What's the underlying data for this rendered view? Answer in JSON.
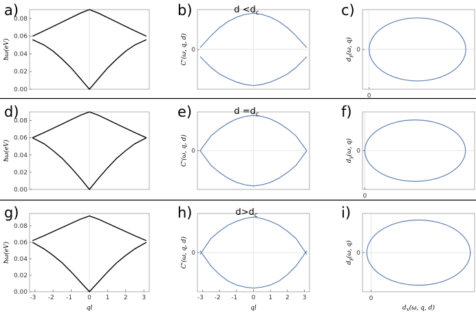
{
  "chart_data": [
    {
      "id": "a",
      "type": "line",
      "panel_label": "a)",
      "title": "",
      "xlabel": "",
      "ylabel": "ħω(eV)",
      "ylim": [
        0,
        0.09
      ],
      "yticks": [
        "0.00",
        "0.02",
        "0.04",
        "0.06",
        "0.08"
      ],
      "xticks": [],
      "line_color": "#000000",
      "series": [
        {
          "x": [
            -3.14,
            -2.5,
            -2,
            -1.5,
            -1,
            -0.5,
            0,
            0.5,
            1,
            1.5,
            2,
            2.5,
            3.14
          ],
          "y": [
            0.06,
            0.066,
            0.071,
            0.076,
            0.081,
            0.086,
            0.09,
            0.086,
            0.081,
            0.076,
            0.071,
            0.066,
            0.06
          ]
        },
        {
          "x": [
            -3.14,
            -2.5,
            -2,
            -1.5,
            -1,
            -0.5,
            0,
            0.5,
            1,
            1.5,
            2,
            2.5,
            3.14
          ],
          "y": [
            0.056,
            0.05,
            0.043,
            0.034,
            0.024,
            0.012,
            0.0,
            0.012,
            0.024,
            0.034,
            0.043,
            0.05,
            0.056
          ]
        }
      ]
    },
    {
      "id": "b",
      "type": "line",
      "panel_label": "b)",
      "title": "d <d",
      "title_sub": "c",
      "xlabel": "",
      "ylabel": "C'(ω, q, d)",
      "ylim": [
        -1.1,
        1.1
      ],
      "yticks": [
        "0"
      ],
      "xticks": [],
      "line_color": "#5b7fb5",
      "series": [
        {
          "x": [
            -3.14,
            -2.5,
            -2,
            -1.5,
            -1,
            -0.5,
            0,
            0.5,
            1,
            1.5,
            2,
            2.5,
            3.14
          ],
          "y": [
            0.05,
            0.38,
            0.6,
            0.77,
            0.89,
            0.97,
            1.0,
            0.97,
            0.89,
            0.77,
            0.6,
            0.38,
            0.05
          ]
        },
        {
          "x": [
            -3.14,
            -2.5,
            -2,
            -1.5,
            -1,
            -0.5,
            0,
            0.5,
            1,
            1.5,
            2,
            2.5,
            3.14
          ],
          "y": [
            -0.2,
            -0.5,
            -0.68,
            -0.8,
            -0.9,
            -0.97,
            -1.0,
            -0.97,
            -0.9,
            -0.8,
            -0.68,
            -0.5,
            -0.2
          ]
        }
      ]
    },
    {
      "id": "c",
      "type": "line",
      "panel_label": "c)",
      "title": "",
      "xlabel": "",
      "ylabel": "d_y(ω, q)",
      "xlim": [
        -0.15,
        2.4
      ],
      "ylim": [
        -1.2,
        1.2
      ],
      "yticks": [
        "0"
      ],
      "xticks": [
        "0"
      ],
      "line_color": "#5b7fb5",
      "ellipse": {
        "cx": 1.1,
        "cy": 0,
        "rx": 1.1,
        "ry": 0.95
      }
    },
    {
      "id": "d",
      "type": "line",
      "panel_label": "d)",
      "title": "",
      "xlabel": "",
      "ylabel": "ħω(eV)",
      "ylim": [
        0,
        0.09
      ],
      "yticks": [
        "0.00",
        "0.02",
        "0.04",
        "0.06",
        "0.08"
      ],
      "xticks": [],
      "line_color": "#000000",
      "series": [
        {
          "x": [
            -3.14,
            -2.5,
            -2,
            -1.5,
            -1,
            -0.5,
            0,
            0.5,
            1,
            1.5,
            2,
            2.5,
            3.14
          ],
          "y": [
            0.06,
            0.066,
            0.071,
            0.076,
            0.081,
            0.086,
            0.09,
            0.086,
            0.081,
            0.076,
            0.071,
            0.066,
            0.06
          ]
        },
        {
          "x": [
            -3.14,
            -2.5,
            -2,
            -1.5,
            -1,
            -0.5,
            0,
            0.5,
            1,
            1.5,
            2,
            2.5,
            3.14
          ],
          "y": [
            0.06,
            0.053,
            0.045,
            0.036,
            0.025,
            0.013,
            0.0,
            0.013,
            0.025,
            0.036,
            0.045,
            0.053,
            0.06
          ]
        }
      ]
    },
    {
      "id": "e",
      "type": "line",
      "panel_label": "e)",
      "title": "d =d",
      "title_sub": "c",
      "xlabel": "",
      "ylabel": "C'(ω, q, d)",
      "ylim": [
        -1.1,
        1.1
      ],
      "yticks": [
        "0"
      ],
      "xticks": [],
      "line_color": "#5b7fb5",
      "series": [
        {
          "x": [
            -3.14,
            -2.5,
            -2,
            -1.5,
            -1,
            -0.5,
            0,
            0.5,
            1,
            1.5,
            2,
            2.5,
            3.14
          ],
          "y": [
            0.0,
            0.42,
            0.62,
            0.78,
            0.9,
            0.97,
            1.0,
            0.97,
            0.9,
            0.78,
            0.62,
            0.42,
            0.0
          ]
        },
        {
          "x": [
            -3.14,
            -2.5,
            -2,
            -1.5,
            -1,
            -0.5,
            0,
            0.5,
            1,
            1.5,
            2,
            2.5,
            3.14
          ],
          "y": [
            0.0,
            -0.42,
            -0.62,
            -0.78,
            -0.9,
            -0.97,
            -1.0,
            -0.97,
            -0.9,
            -0.78,
            -0.62,
            -0.42,
            0.0
          ]
        }
      ]
    },
    {
      "id": "f",
      "type": "line",
      "panel_label": "f)",
      "title": "",
      "xlabel": "",
      "ylabel": "d_y(ω, q)",
      "xlim": [
        -0.05,
        2.4
      ],
      "ylim": [
        -1.2,
        1.2
      ],
      "yticks": [
        "0"
      ],
      "xticks": [
        "0"
      ],
      "line_color": "#5b7fb5",
      "ellipse": {
        "cx": 1.1,
        "cy": 0,
        "rx": 1.1,
        "ry": 0.95
      }
    },
    {
      "id": "g",
      "type": "line",
      "panel_label": "g)",
      "title": "",
      "xlabel": "ql",
      "ylabel": "ħω(eV)",
      "ylim": [
        0,
        0.095
      ],
      "yticks": [
        "0.00",
        "0.02",
        "0.04",
        "0.06",
        "0.08"
      ],
      "xticks": [
        "-3",
        "-2",
        "-1",
        "0",
        "1",
        "2",
        "3"
      ],
      "line_color": "#000000",
      "series": [
        {
          "x": [
            -3.14,
            -2.5,
            -2,
            -1.5,
            -1,
            -0.5,
            0,
            0.5,
            1,
            1.5,
            2,
            2.5,
            3.14
          ],
          "y": [
            0.062,
            0.068,
            0.073,
            0.078,
            0.083,
            0.088,
            0.092,
            0.088,
            0.083,
            0.078,
            0.073,
            0.068,
            0.062
          ]
        },
        {
          "x": [
            -3.14,
            -2.5,
            -2,
            -1.5,
            -1,
            -0.5,
            0,
            0.5,
            1,
            1.5,
            2,
            2.5,
            3.14
          ],
          "y": [
            0.06,
            0.052,
            0.044,
            0.035,
            0.024,
            0.012,
            0.0,
            0.012,
            0.024,
            0.035,
            0.044,
            0.052,
            0.06
          ]
        }
      ]
    },
    {
      "id": "h",
      "type": "line",
      "panel_label": "h)",
      "title": "d>d",
      "title_sub": "c",
      "xlabel": "ql",
      "ylabel": "C'(ω, q, d)",
      "ylim": [
        -1.1,
        1.1
      ],
      "yticks": [
        "0"
      ],
      "xticks": [
        "-3",
        "-2",
        "-1",
        "0",
        "1",
        "2",
        "3"
      ],
      "line_color": "#5b7fb5",
      "series": [
        {
          "x": [
            -3.14,
            -2.5,
            -2,
            -1.5,
            -1,
            -0.5,
            0,
            0.5,
            1,
            1.5,
            2,
            2.5,
            3.14
          ],
          "y": [
            -0.05,
            0.4,
            0.6,
            0.77,
            0.88,
            0.96,
            1.0,
            0.96,
            0.88,
            0.77,
            0.6,
            0.4,
            -0.05
          ]
        },
        {
          "x": [
            -3.14,
            -2.5,
            -2,
            -1.5,
            -1,
            -0.5,
            0,
            0.5,
            1,
            1.5,
            2,
            2.5,
            3.14
          ],
          "y": [
            0.05,
            -0.38,
            -0.62,
            -0.8,
            -0.91,
            -0.97,
            -1.0,
            -0.97,
            -0.91,
            -0.8,
            -0.62,
            -0.38,
            0.05
          ]
        }
      ]
    },
    {
      "id": "i",
      "type": "line",
      "panel_label": "i)",
      "title": "",
      "xlabel": "d_x(ω, q, d)",
      "ylabel": "d_y(ω, q)",
      "xlim": [
        -0.2,
        2.4
      ],
      "ylim": [
        -1.2,
        1.2
      ],
      "yticks": [
        "0"
      ],
      "xticks": [
        "0"
      ],
      "line_color": "#5b7fb5",
      "ellipse": {
        "cx": 1.1,
        "cy": 0,
        "rx": 1.2,
        "ry": 1.0
      }
    }
  ]
}
